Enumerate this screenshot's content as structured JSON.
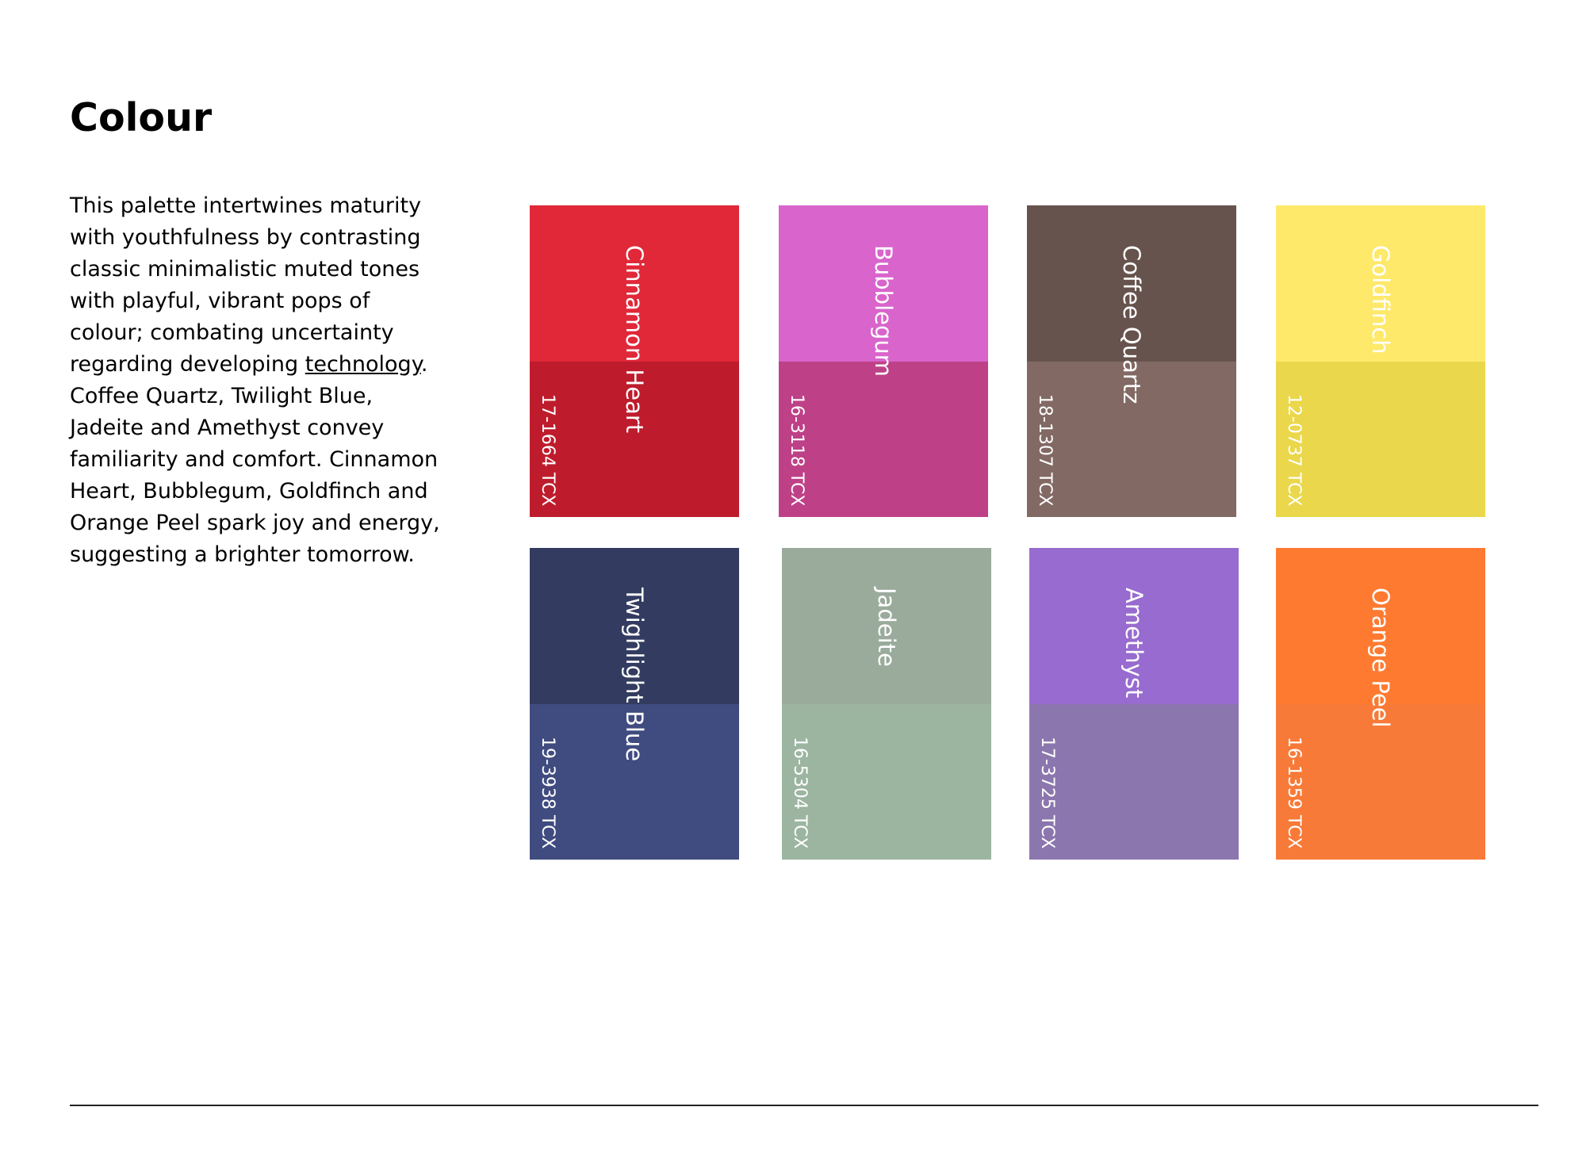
{
  "page": {
    "title": "Colour"
  },
  "description": {
    "lines": [
      "This palette intertwines maturity",
      "with youthfulness by contrasting",
      "classic minimalistic muted tones",
      "with playful, vibrant pops of",
      "colour; combating uncertainty"
    ],
    "line6_before": "regarding developing ",
    "line6_link": "technology",
    "line6_after": ".",
    "lines_after": [
      "Coffee Quartz, Twilight Blue,",
      "Jadeite and Amethyst convey",
      "familiarity and comfort. Cinnamon",
      "Heart, Bubblegum, Goldfinch and",
      "Orange Peel spark joy and energy,",
      "suggesting a brighter tomorrow."
    ]
  },
  "swatches": [
    {
      "name": "Cinnamon Heart",
      "code": "17-1664 TCX",
      "top_color": "#E02839",
      "bottom_color": "#BE1C2D",
      "text_color": "#FFFFFF"
    },
    {
      "name": "Bubblegum",
      "code": "16-3118 TCX",
      "top_color": "#D964CC",
      "bottom_color": "#BE4188",
      "text_color": "#FFFFFF"
    },
    {
      "name": "Coffee Quartz",
      "code": "18-1307 TCX",
      "top_color": "#67534D",
      "bottom_color": "#826964",
      "text_color": "#FFFFFF"
    },
    {
      "name": "Goldfinch",
      "code": "12-0737 TCX",
      "top_color": "#FEE96B",
      "bottom_color": "#EBD74B",
      "text_color": "#FFFFFF"
    },
    {
      "name": "Twighlight Blue",
      "code": "19-3938 TCX",
      "top_color": "#333C60",
      "bottom_color": "#404C80",
      "text_color": "#FFFFFF"
    },
    {
      "name": "Jadeite",
      "code": "16-5304 TCX",
      "top_color": "#9AAB9C",
      "bottom_color": "#9CB5A0",
      "text_color": "#FFFFFF"
    },
    {
      "name": "Amethyst",
      "code": "17-3725 TCX",
      "top_color": "#976BCF",
      "bottom_color": "#8C76AE",
      "text_color": "#FFFFFF"
    },
    {
      "name": "Orange Peel",
      "code": "16-1359 TCX",
      "top_color": "#FE7A30",
      "bottom_color": "#F87A38",
      "text_color": "#FFFFFF"
    }
  ]
}
